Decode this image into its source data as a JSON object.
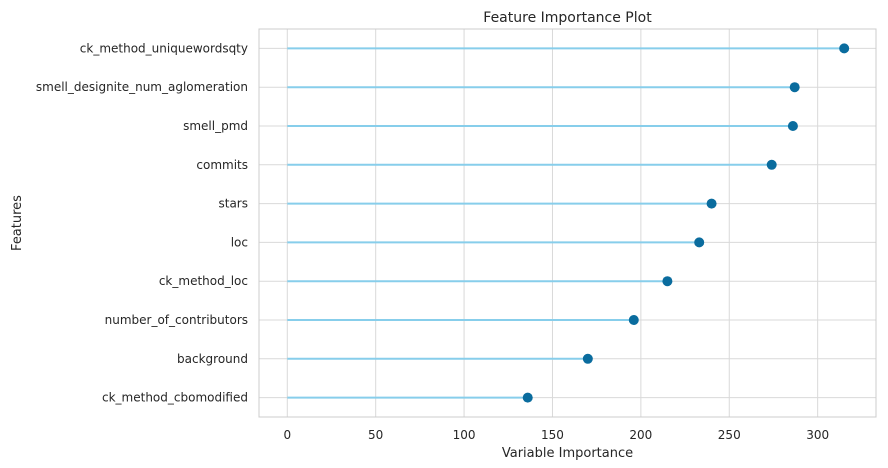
{
  "chart_data": {
    "type": "lollipop",
    "title": "Feature Importance Plot",
    "xlabel": "Variable Importance",
    "ylabel": "Features",
    "xlim": [
      -16,
      333
    ],
    "xticks": [
      0,
      50,
      100,
      150,
      200,
      250,
      300
    ],
    "categories": [
      "ck_method_uniquewordsqty",
      "smell_designite_num_aglomeration",
      "smell_pmd",
      "commits",
      "stars",
      "loc",
      "ck_method_loc",
      "number_of_contributors",
      "background",
      "ck_method_cbomodified"
    ],
    "values": [
      315,
      287,
      286,
      274,
      240,
      233,
      215,
      196,
      170,
      136
    ],
    "grid": true,
    "colors": {
      "stem": "#87ceeb",
      "marker": "#0a6c9e",
      "grid": "#d9d9d9",
      "frame": "#cccccc",
      "text": "#262626"
    }
  }
}
